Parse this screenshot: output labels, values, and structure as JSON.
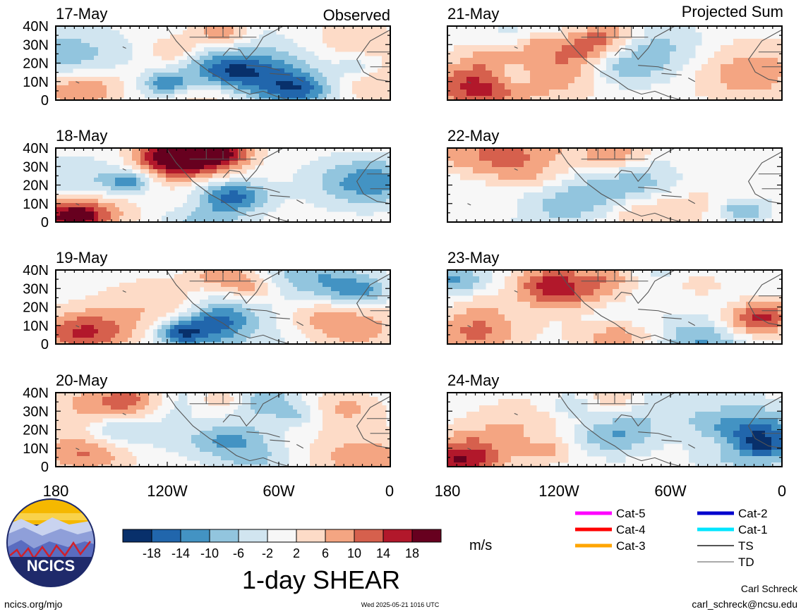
{
  "header": {
    "left_label": "Observed",
    "right_label": "Projected Sum"
  },
  "panels": [
    {
      "date": "17-May",
      "column": "left",
      "row": 0,
      "seed": 3,
      "mode": "obs"
    },
    {
      "date": "18-May",
      "column": "left",
      "row": 1,
      "seed": 7,
      "mode": "obs"
    },
    {
      "date": "19-May",
      "column": "left",
      "row": 2,
      "seed": 11,
      "mode": "obs"
    },
    {
      "date": "20-May",
      "column": "left",
      "row": 3,
      "seed": 17,
      "mode": "obs"
    },
    {
      "date": "21-May",
      "column": "right",
      "row": 0,
      "seed": 21,
      "mode": "proj"
    },
    {
      "date": "22-May",
      "column": "right",
      "row": 1,
      "seed": 25,
      "mode": "proj"
    },
    {
      "date": "23-May",
      "column": "right",
      "row": 2,
      "seed": 29,
      "mode": "proj"
    },
    {
      "date": "24-May",
      "column": "right",
      "row": 3,
      "seed": 33,
      "mode": "proj"
    }
  ],
  "y_ticks": [
    "40N",
    "30N",
    "20N",
    "10N",
    "0"
  ],
  "x_ticks": [
    "180",
    "120W",
    "60W",
    "0"
  ],
  "colorbar": {
    "colors": [
      "#08306b",
      "#2166ac",
      "#4393c3",
      "#92c5de",
      "#d1e5f0",
      "#f7f7f7",
      "#fddbc7",
      "#f4a582",
      "#d6604d",
      "#b2182b",
      "#67001f"
    ],
    "labels": [
      "-18",
      "-14",
      "-10",
      "-6",
      "-2",
      "2",
      "6",
      "10",
      "14",
      "18"
    ],
    "units": "m/s"
  },
  "title": "1-day SHEAR",
  "logo_text": "NCICS",
  "footer": {
    "left": "ncics.org/mjo",
    "timestamp": "Wed 2025-05-21 1016 UTC",
    "author": "Carl Schreck",
    "email": "carl_schreck@ncsu.edu"
  },
  "legend": [
    {
      "label": "Cat-5",
      "color": "#ff00ff"
    },
    {
      "label": "Cat-4",
      "color": "#ff0000"
    },
    {
      "label": "Cat-3",
      "color": "#ffa500"
    },
    {
      "label": "Cat-2",
      "color": "#0000cd"
    },
    {
      "label": "Cat-1",
      "color": "#00e5ff"
    },
    {
      "label": "TS",
      "color": "#555555"
    },
    {
      "label": "TD",
      "color": "#aaaaaa"
    }
  ]
}
